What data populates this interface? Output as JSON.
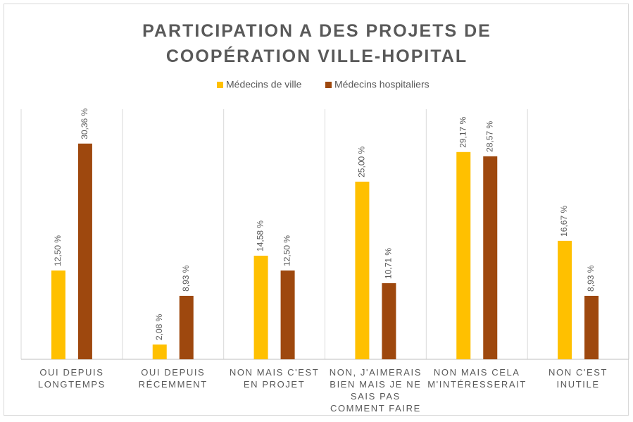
{
  "chart_data": {
    "type": "bar",
    "title": "PARTICIPATION  A DES PROJETS DE COOPÉRATION VILLE-HOPITAL",
    "categories": [
      "OUI DEPUIS LONGTEMPS",
      "OUI DEPUIS RÉCEMMENT",
      "NON MAIS C'EST EN PROJET",
      "NON, J'AIMERAIS BIEN MAIS JE NE SAIS PAS COMMENT FAIRE",
      "NON MAIS CELA M'INTÉRESSERAIT",
      "NON C'EST INUTILE"
    ],
    "series": [
      {
        "name": "Médecins de ville",
        "color": "#ffc000",
        "values": [
          12.5,
          2.08,
          14.58,
          25.0,
          29.17,
          16.67
        ],
        "value_labels": [
          "12,50 %",
          "2,08 %",
          "14,58 %",
          "25,00 %",
          "29,17 %",
          "16,67 %"
        ]
      },
      {
        "name": "Médecins hospitaliers",
        "color": "#9e480e",
        "values": [
          30.36,
          8.93,
          12.5,
          10.71,
          28.57,
          8.93
        ],
        "value_labels": [
          "30,36 %",
          "8,93 %",
          "12,50 %",
          "10,71 %",
          "28,57 %",
          "8,93 %"
        ]
      }
    ],
    "ylim": [
      0,
      35
    ]
  }
}
